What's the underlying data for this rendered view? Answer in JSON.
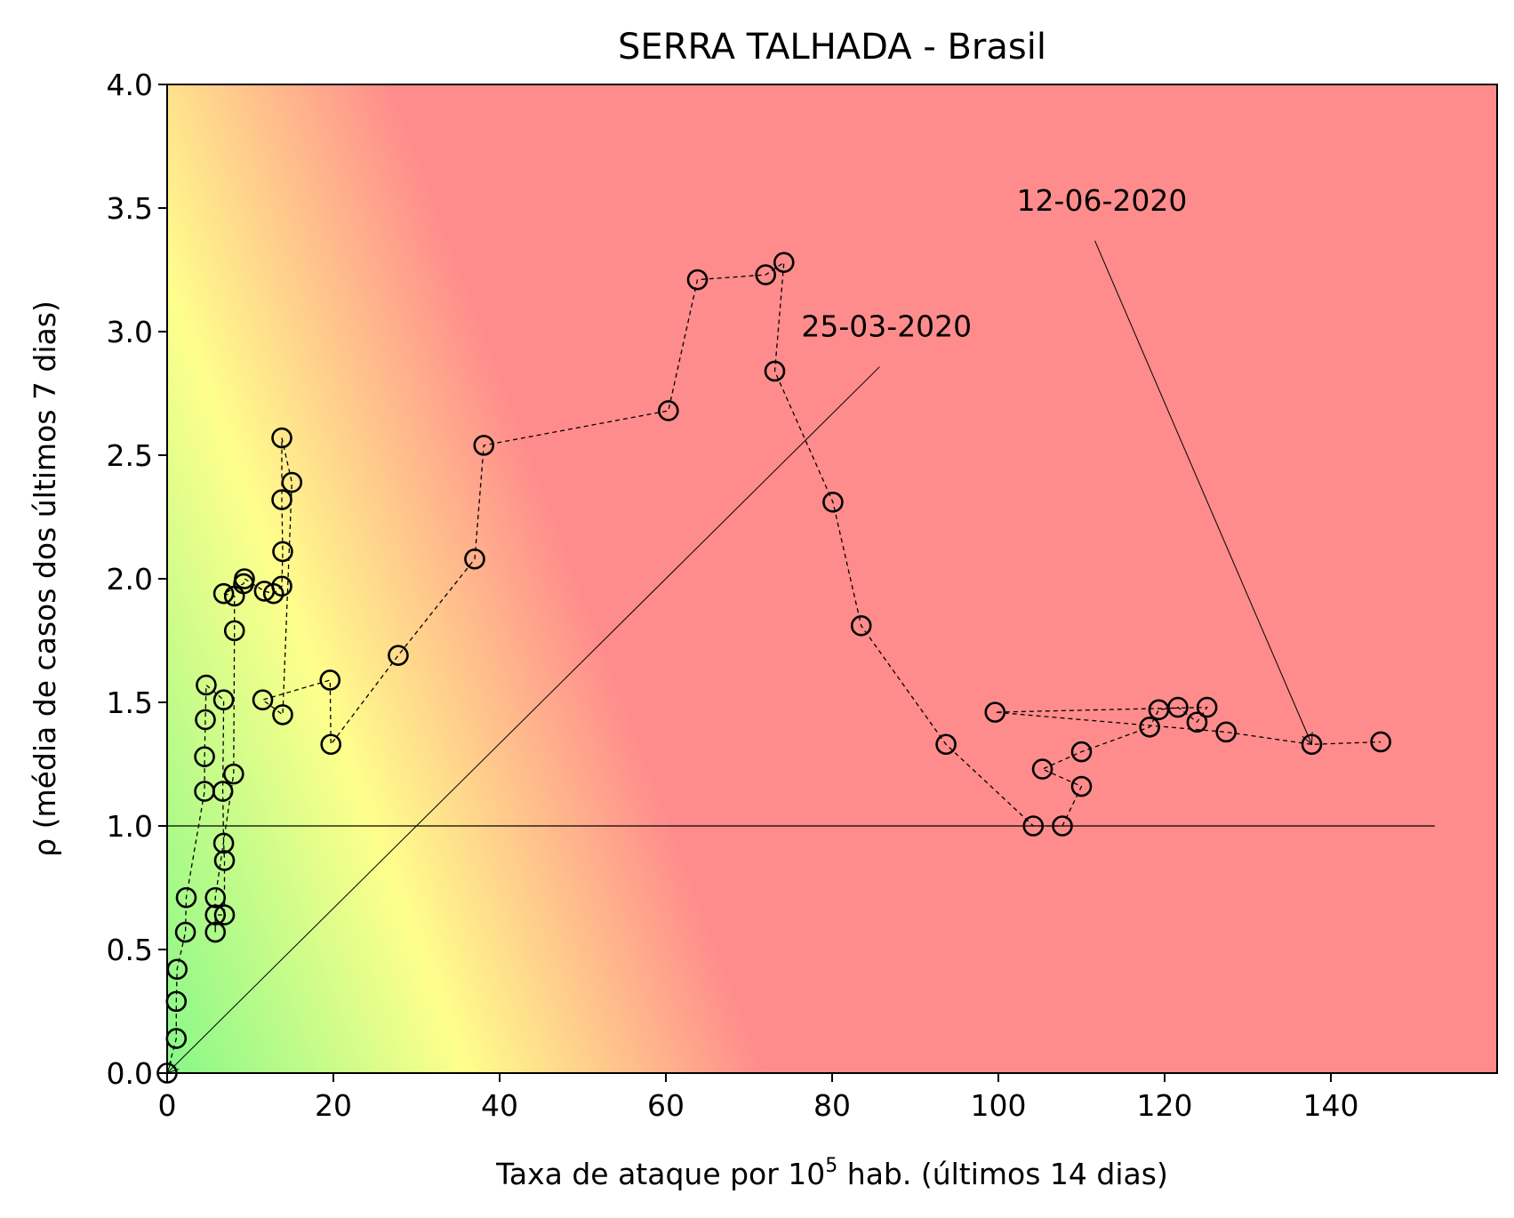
{
  "chart_data": {
    "type": "scatter",
    "title": "SERRA TALHADA - Brasil",
    "xlabel_prefix": "Taxa de ataque por 10",
    "xlabel_sup": "5",
    "xlabel_suffix": " hab. (últimos 14 dias)",
    "ylabel": "ρ (média de casos dos últimos 7 dias)",
    "xlim": [
      0,
      160
    ],
    "ylim": [
      0,
      4.0
    ],
    "xticks": [
      0,
      20,
      40,
      60,
      80,
      100,
      120,
      140
    ],
    "xtick_labels": [
      "0",
      "20",
      "40",
      "60",
      "80",
      "100",
      "120",
      "140"
    ],
    "yticks": [
      0.0,
      0.5,
      1.0,
      1.5,
      2.0,
      2.5,
      3.0,
      3.5,
      4.0
    ],
    "ytick_labels": [
      "0.0",
      "0.5",
      "1.0",
      "1.5",
      "2.0",
      "2.5",
      "3.0",
      "3.5",
      "4.0"
    ],
    "grid": false,
    "reference_line": {
      "y": 1.0,
      "x_range": [
        0,
        152.5
      ]
    },
    "background_gradient": "green near origin, yellow band, red at high values",
    "colors": {
      "low": "#88f888",
      "mid": "#ffff8c",
      "high": "#ff8c8c",
      "markers": "#000000"
    },
    "series": [
      {
        "points": [
          [
            0,
            0
          ],
          [
            1.1,
            0.14
          ],
          [
            1.1,
            0.29
          ],
          [
            1.2,
            0.42
          ],
          [
            2.2,
            0.57
          ],
          [
            2.3,
            0.71
          ],
          [
            4.5,
            1.14
          ],
          [
            4.5,
            1.28
          ],
          [
            4.6,
            1.43
          ],
          [
            4.7,
            1.57
          ],
          [
            6.8,
            1.51
          ],
          [
            6.7,
            1.14
          ],
          [
            6.8,
            0.93
          ],
          [
            6.9,
            0.86
          ],
          [
            6.9,
            0.64
          ],
          [
            5.8,
            0.64
          ],
          [
            5.8,
            0.57
          ],
          [
            5.8,
            0.71
          ],
          [
            8.0,
            1.21
          ],
          [
            8.1,
            1.79
          ],
          [
            8.1,
            1.93
          ],
          [
            6.8,
            1.94
          ],
          [
            9.2,
            1.98
          ],
          [
            9.3,
            2.0
          ],
          [
            11.7,
            1.95
          ],
          [
            12.8,
            1.94
          ],
          [
            13.8,
            1.97
          ],
          [
            13.9,
            2.11
          ],
          [
            13.8,
            2.32
          ],
          [
            13.8,
            2.57
          ],
          [
            15.0,
            2.39
          ],
          [
            13.9,
            1.45
          ],
          [
            11.5,
            1.51
          ],
          [
            19.6,
            1.59
          ],
          [
            19.7,
            1.33
          ],
          [
            27.8,
            1.69
          ],
          [
            37.0,
            2.08
          ],
          [
            38.1,
            2.54
          ],
          [
            60.3,
            2.68
          ],
          [
            63.8,
            3.21
          ],
          [
            72.0,
            3.23
          ],
          [
            74.2,
            3.28
          ],
          [
            73.1,
            2.84
          ],
          [
            80.1,
            2.31
          ],
          [
            83.5,
            1.81
          ],
          [
            93.7,
            1.33
          ],
          [
            104.2,
            1.0
          ],
          [
            107.7,
            1.0
          ],
          [
            110.0,
            1.16
          ],
          [
            105.3,
            1.23
          ],
          [
            110.0,
            1.3
          ],
          [
            118.2,
            1.4
          ],
          [
            119.3,
            1.47
          ],
          [
            121.6,
            1.48
          ],
          [
            123.9,
            1.42
          ],
          [
            125.1,
            1.48
          ],
          [
            99.6,
            1.46
          ],
          [
            127.4,
            1.38
          ],
          [
            137.7,
            1.33
          ],
          [
            146.0,
            1.34
          ]
        ]
      }
    ],
    "annotations": [
      {
        "text": "25-03-2020",
        "point": [
          0,
          0
        ],
        "text_at": [
          76.3,
          2.98
        ]
      },
      {
        "text": "12-06-2020",
        "point": [
          137.7,
          1.33
        ],
        "text_at": [
          102.2,
          3.49
        ]
      }
    ]
  }
}
